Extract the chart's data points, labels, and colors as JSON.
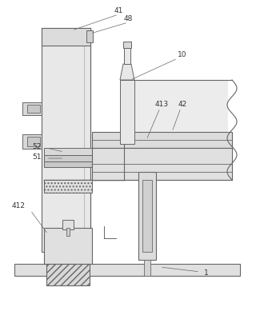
{
  "bg_color": "#ffffff",
  "lc": "#aaaaaa",
  "dc": "#666666",
  "bc": "#888888"
}
